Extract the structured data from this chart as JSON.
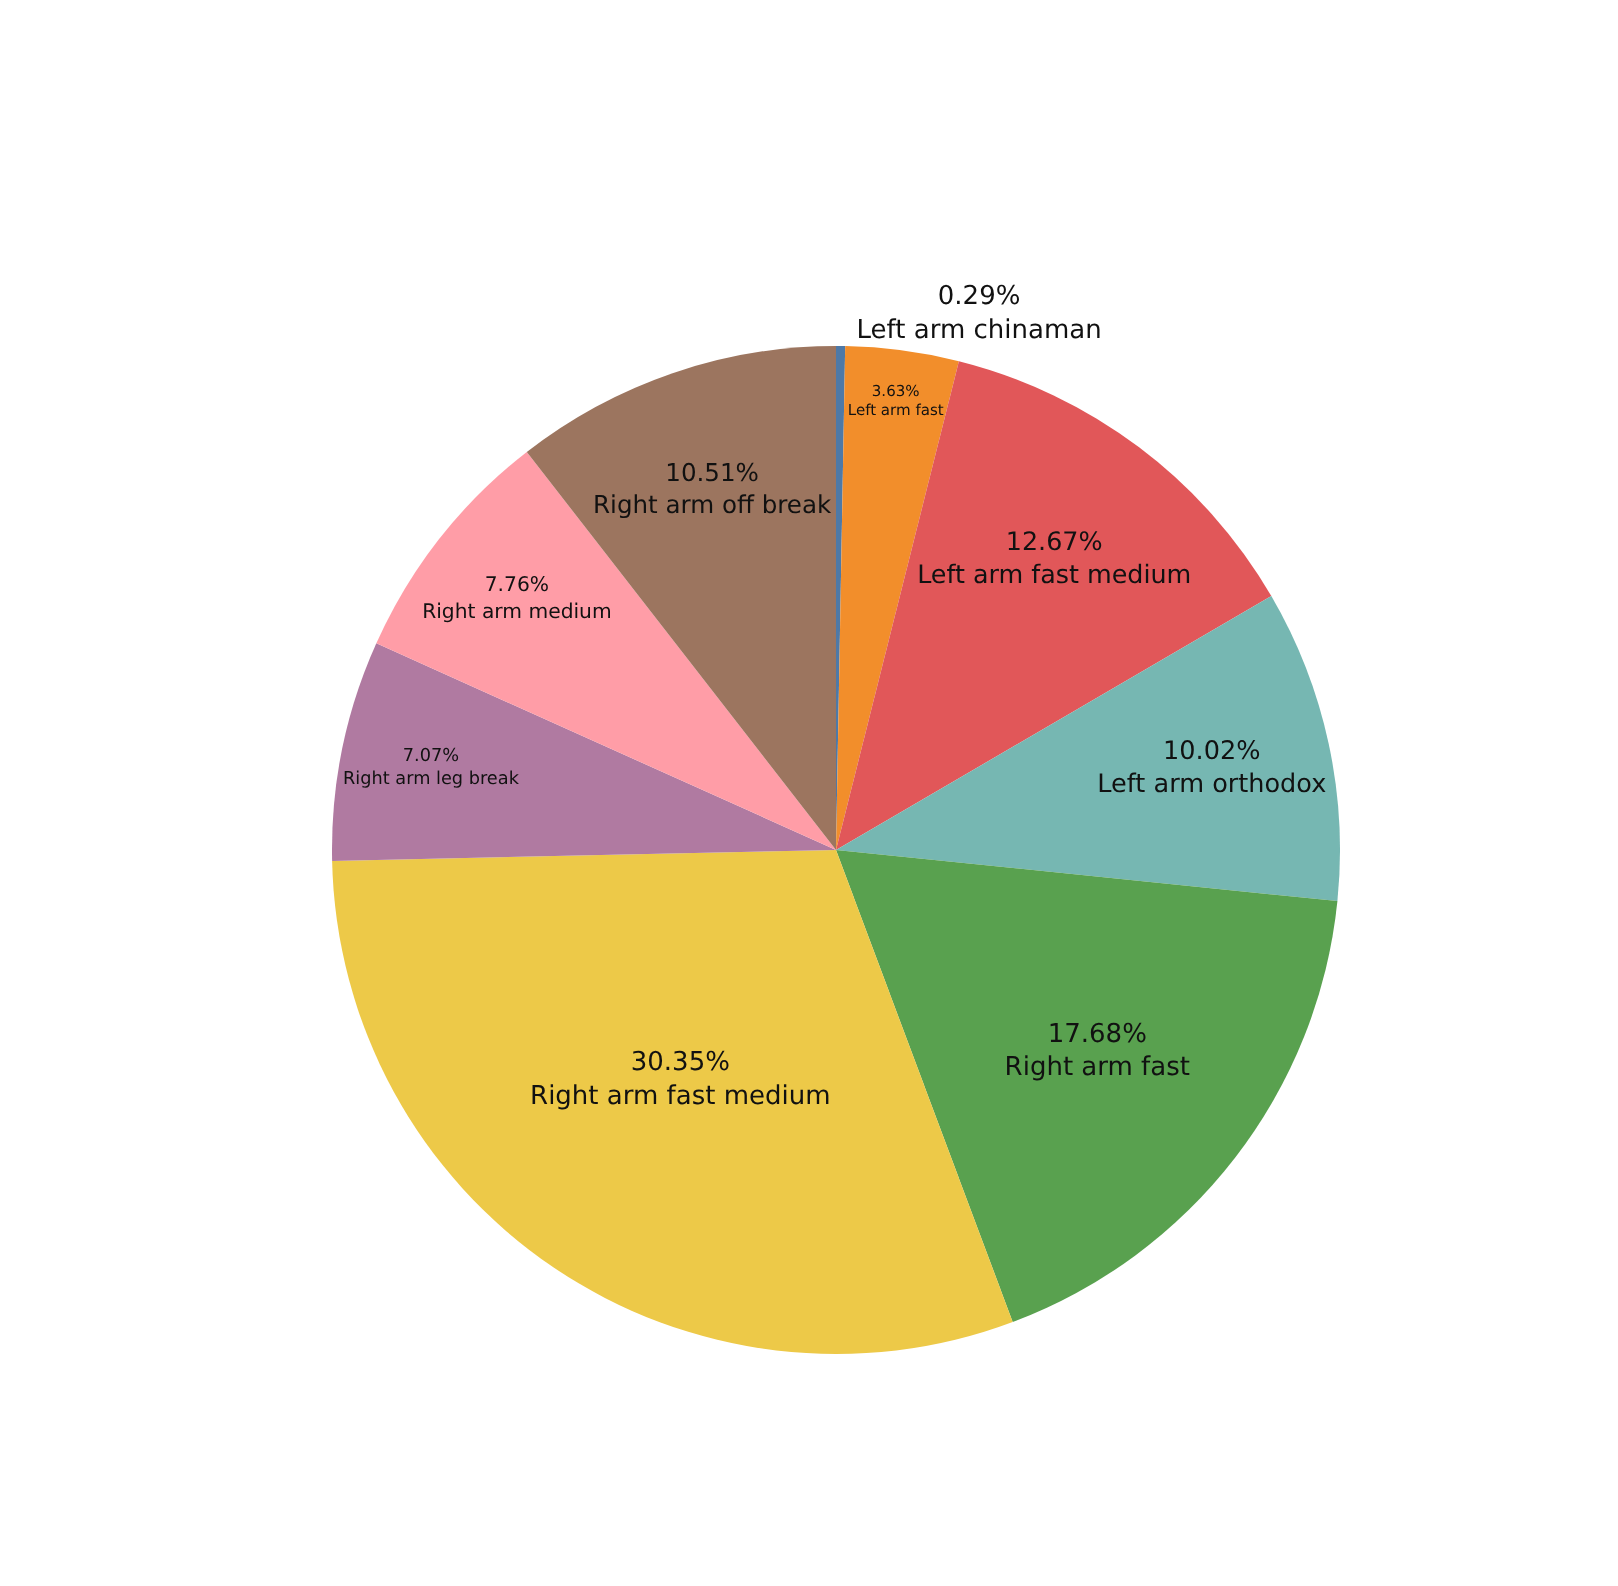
{
  "chart_data": {
    "type": "pie",
    "categories": [
      "Left arm chinaman",
      "Left arm fast",
      "Left arm fast medium",
      "Left arm orthodox",
      "Right arm fast",
      "Right arm fast medium",
      "Right arm leg break",
      "Right arm medium",
      "Right arm off break"
    ],
    "values": [
      0.29,
      3.63,
      12.67,
      10.02,
      17.68,
      30.35,
      7.07,
      7.76,
      10.51
    ],
    "value_labels": [
      "0.29%",
      "3.63%",
      "12.67%",
      "10.02%",
      "17.68%",
      "30.35%",
      "7.07%",
      "7.76%",
      "10.51%"
    ],
    "colors": [
      "#4e79a7",
      "#f28e2b",
      "#e15759",
      "#76b7b2",
      "#59a14f",
      "#edc948",
      "#b07aa1",
      "#ff9da7",
      "#9c755f"
    ],
    "legend": false
  }
}
